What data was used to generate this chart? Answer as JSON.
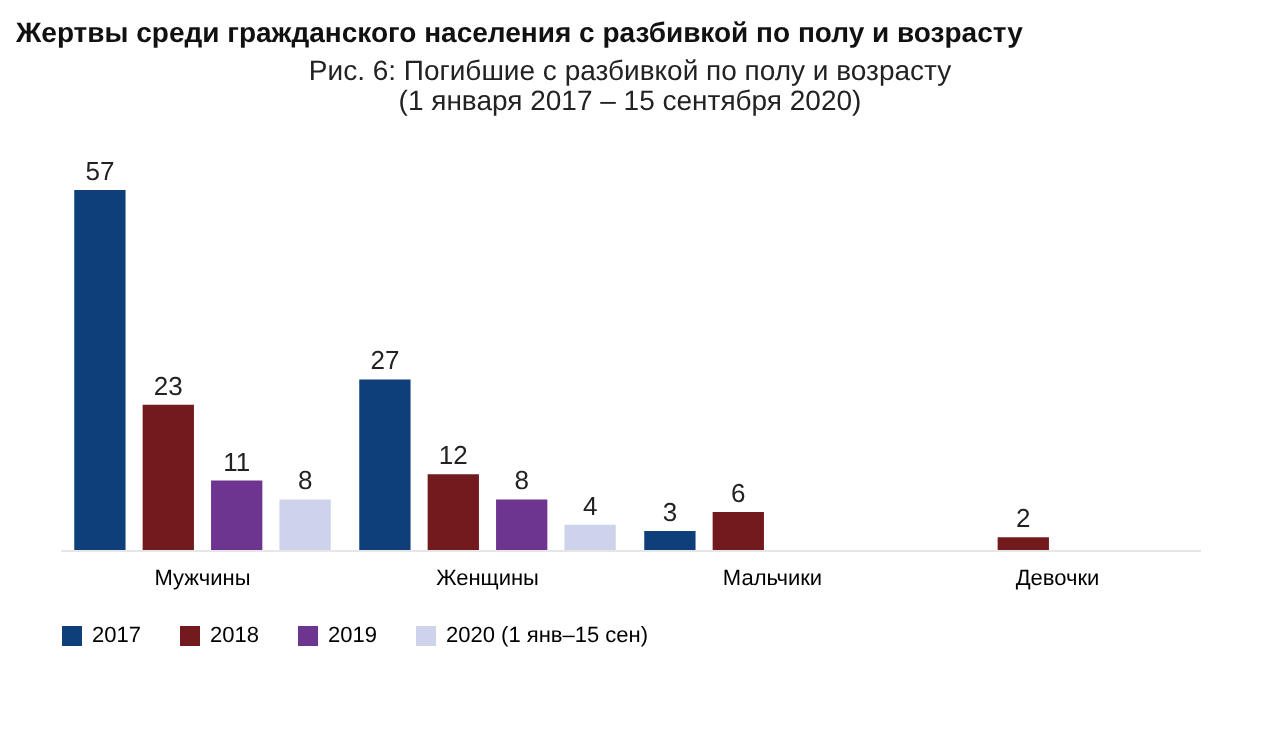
{
  "chart_data": {
    "type": "bar",
    "title": "Рис. 6: Погибшие с разбивкой по полу и возрасту",
    "subtitle": "(1 января 2017 – 15 сентября 2020)",
    "annotations": [
      "Жертвы среди гражданского населения с разбивкой по полу и возрасту"
    ],
    "categories": [
      "Мужчины",
      "Женщины",
      "Мальчики",
      "Девочки"
    ],
    "series": [
      {
        "name": "2017",
        "color": "#0f3f7a",
        "values": [
          57,
          27,
          3,
          null
        ]
      },
      {
        "name": "2018",
        "color": "#731a1f",
        "values": [
          23,
          12,
          6,
          2
        ]
      },
      {
        "name": "2019",
        "color": "#6e3590",
        "values": [
          11,
          8,
          null,
          null
        ]
      },
      {
        "name": "2020 (1 янв–15 сен)",
        "color": "#cdd3ea",
        "values": [
          8,
          4,
          null,
          null
        ]
      }
    ],
    "data_labels": true,
    "legend": "bottom",
    "grid": false
  }
}
